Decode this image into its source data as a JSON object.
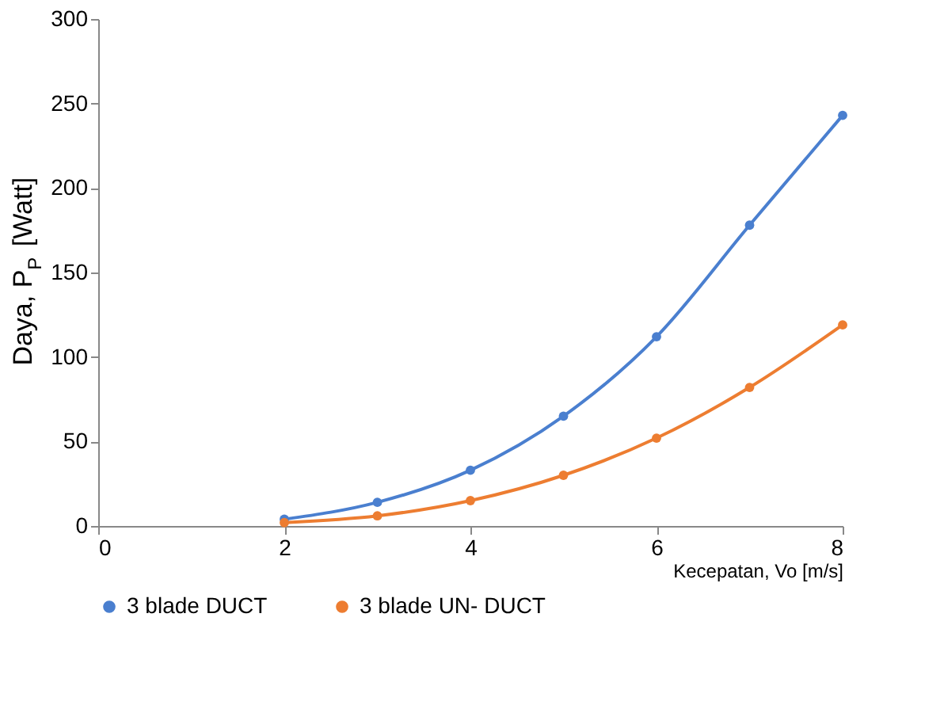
{
  "chart_data": {
    "type": "line",
    "xlabel": "Kecepatan, Vo [m/s]",
    "ylabel": "Daya, P$_{P}$ [Watt]",
    "xlim": [
      0,
      8
    ],
    "xticks": [
      0,
      2,
      4,
      6,
      8
    ],
    "ylim": [
      0,
      300
    ],
    "yticks": [
      0,
      50,
      100,
      150,
      200,
      250,
      300
    ],
    "grid": false,
    "legend": "bottom",
    "marker": "circle",
    "line_style": "solid",
    "series": [
      {
        "name": "3 blade DUCT",
        "color": "#4a7fcf",
        "x": [
          2,
          3,
          4,
          5,
          6,
          7,
          8
        ],
        "values": [
          4,
          14,
          33,
          65,
          112,
          178,
          243
        ]
      },
      {
        "name": "3 blade UN- DUCT",
        "color": "#ed7d31",
        "x": [
          2,
          3,
          4,
          5,
          6,
          7,
          8
        ],
        "values": [
          2,
          6,
          15,
          30,
          52,
          82,
          119
        ]
      }
    ]
  }
}
